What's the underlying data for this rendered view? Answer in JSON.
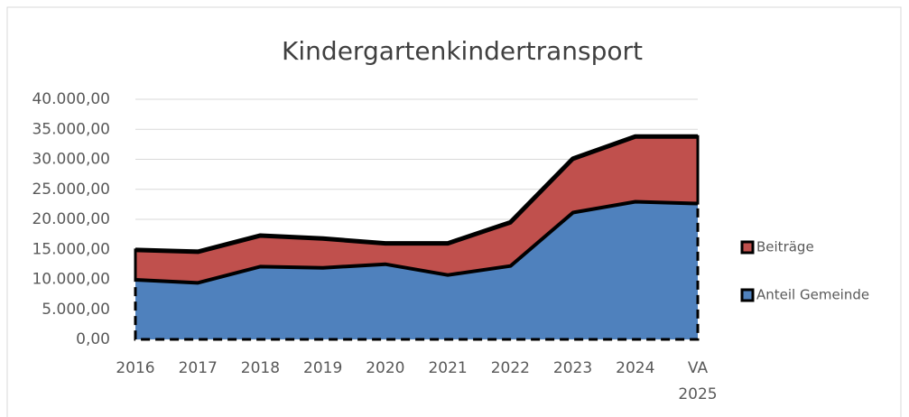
{
  "chart_data": {
    "type": "stacked_area",
    "title": "Kindergartenkindertransport",
    "categories": [
      "2016",
      "2017",
      "2018",
      "2019",
      "2020",
      "2021",
      "2022",
      "2023",
      "2024",
      "VA 2025"
    ],
    "series": [
      {
        "name": "Anteil Gemeinde",
        "color": "#4f81bd",
        "values": [
          10000,
          9500,
          12200,
          12000,
          12600,
          10800,
          12300,
          21200,
          23000,
          22700
        ]
      },
      {
        "name": "Beiträge",
        "color": "#c0504d",
        "values": [
          4900,
          5100,
          5100,
          4800,
          3400,
          5200,
          7200,
          8900,
          10800,
          11100
        ]
      }
    ],
    "ylim": [
      0,
      40000
    ],
    "yticks": [
      {
        "value": 0,
        "label": "0,00"
      },
      {
        "value": 5000,
        "label": "5.000,00"
      },
      {
        "value": 10000,
        "label": "10.000,00"
      },
      {
        "value": 15000,
        "label": "15.000,00"
      },
      {
        "value": 20000,
        "label": "20.000,00"
      },
      {
        "value": 25000,
        "label": "25.000,00"
      },
      {
        "value": 30000,
        "label": "30.000,00"
      },
      {
        "value": 35000,
        "label": "35.000,00"
      },
      {
        "value": 40000,
        "label": "40.000,00"
      }
    ],
    "grid": true,
    "legend": "right"
  }
}
